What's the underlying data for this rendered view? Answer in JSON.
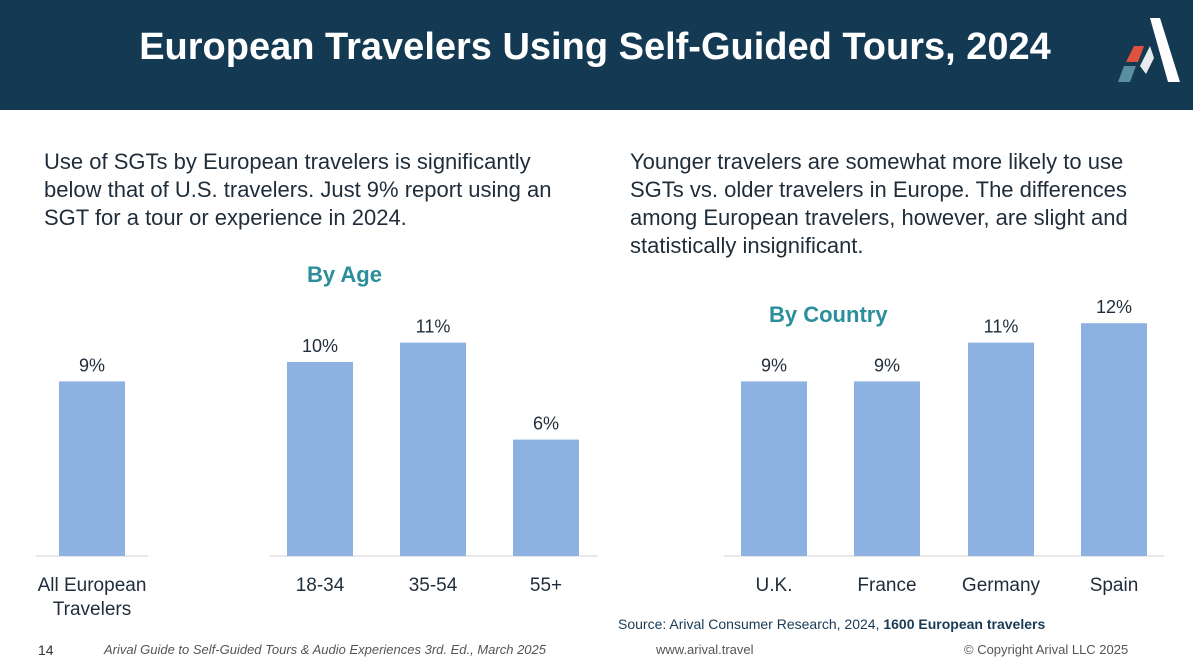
{
  "header": {
    "title": "European Travelers Using Self-Guided Tours, 2024"
  },
  "left_text": "Use of SGTs by European travelers is significantly below that of U.S. travelers. Just 9% report using an SGT for a tour or experience in 2024.",
  "right_text": "Younger travelers are somewhat more likely to use SGTs vs. older travelers in Europe. The differences among European travelers, however, are slight and statistically insignificant.",
  "chart_data": [
    {
      "type": "bar",
      "title": "",
      "categories": [
        "All European Travelers"
      ],
      "values": [
        9
      ],
      "value_labels": [
        "9%"
      ],
      "color": "#8db1e1",
      "ylim": [
        0,
        14
      ]
    },
    {
      "type": "bar",
      "title": "By Age",
      "categories": [
        "18-34",
        "35-54",
        "55+"
      ],
      "values": [
        10,
        11,
        6
      ],
      "value_labels": [
        "10%",
        "11%",
        "6%"
      ],
      "color": "#8db1e1",
      "ylim": [
        0,
        14
      ]
    },
    {
      "type": "bar",
      "title": "By Country",
      "categories": [
        "U.K.",
        "France",
        "Germany",
        "Spain"
      ],
      "values": [
        9,
        9,
        11,
        12
      ],
      "value_labels": [
        "9%",
        "9%",
        "11%",
        "12%"
      ],
      "color": "#8db1e1",
      "ylim": [
        0,
        14
      ]
    }
  ],
  "source": {
    "prefix": "Source: Arival Consumer Research, 2024, ",
    "bold": "1600 European travelers"
  },
  "footer": {
    "page": "14",
    "guide": "Arival Guide to Self-Guided Tours & Audio Experiences 3rd. Ed., March 2025",
    "url": "www.arival.travel",
    "copyright": "© Copyright Arival LLC 2025"
  },
  "colors": {
    "header_bg": "#133a52",
    "accent": "#2a8f9a",
    "bar": "#8db1e1",
    "logo_red": "#e0523e"
  }
}
